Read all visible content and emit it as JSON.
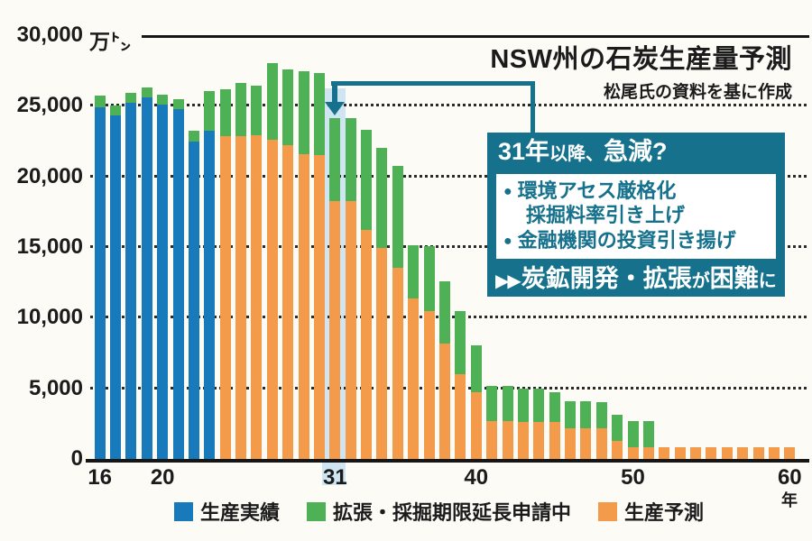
{
  "title": "NSW州の石炭生産量予測",
  "subtitle": "松尾氏の資料を基に作成",
  "callout": {
    "header": {
      "part1": "31年",
      "part2": "以降、",
      "part3": "急減?"
    },
    "bullet_icon": "●",
    "item1_line1": "環境アセス厳格化",
    "item1_line2": "採掘料率引き上げ",
    "item2": "金融機関の投資引き揚げ",
    "footer": {
      "arrows": "▶▶",
      "part1": "炭鉱開発・拡張",
      "part2": "が",
      "part3": "困難",
      "part4": "に"
    },
    "box_color": "#15718c"
  },
  "legend": {
    "items": [
      {
        "label": "生産実績"
      },
      {
        "label": "拡張・採掘期限延長申請中"
      },
      {
        "label": "生産予測"
      }
    ]
  },
  "colors": {
    "actual_blue": "#1879bb",
    "pending_green": "#4fb156",
    "forecast_orange": "#f39a4b",
    "callout_teal": "#15718c",
    "highlight_band": "#cfe6f2",
    "axis_black": "#161616"
  },
  "chart_data": {
    "type": "bar",
    "subtype": "stacked",
    "title": "NSW州の石炭生産量予測",
    "subtitle": "松尾氏の資料を基に作成",
    "y_unit": "万㌧",
    "x_unit": "年",
    "ylim": [
      0,
      30000
    ],
    "grid": "dotted-horizontal",
    "legend_position": "bottom",
    "highlight_year": 31,
    "yticks": [
      {
        "value": 0,
        "label": "0"
      },
      {
        "value": 5000,
        "label": "5,000"
      },
      {
        "value": 10000,
        "label": "10,000"
      },
      {
        "value": 15000,
        "label": "15,000"
      },
      {
        "value": 20000,
        "label": "20,000"
      },
      {
        "value": 25000,
        "label": "25,000"
      },
      {
        "value": 30000,
        "label": "30,000"
      }
    ],
    "x_ticks": [
      16,
      20,
      31,
      40,
      50,
      60
    ],
    "series": [
      {
        "key": "actual",
        "label": "生産実績",
        "color": "#1879bb"
      },
      {
        "key": "pending",
        "label": "拡張・採掘期限延長申請中",
        "color": "#4fb156"
      },
      {
        "key": "forecast",
        "label": "生産予測",
        "color": "#f39a4b"
      }
    ],
    "bars": [
      {
        "year": 16,
        "actual": 24900,
        "pending": 800
      },
      {
        "year": 17,
        "actual": 24350,
        "pending": 650
      },
      {
        "year": 18,
        "actual": 25200,
        "pending": 700
      },
      {
        "year": 19,
        "actual": 25600,
        "pending": 700
      },
      {
        "year": 20,
        "actual": 25100,
        "pending": 700
      },
      {
        "year": 21,
        "actual": 24750,
        "pending": 700
      },
      {
        "year": 22,
        "actual": 22500,
        "pending": 750
      },
      {
        "year": 23,
        "actual": 23250,
        "pending": 2800
      },
      {
        "year": 24,
        "forecast": 22850,
        "pending": 3300
      },
      {
        "year": 25,
        "forecast": 22850,
        "pending": 3800
      },
      {
        "year": 26,
        "forecast": 22900,
        "pending": 3550
      },
      {
        "year": 27,
        "forecast": 22600,
        "pending": 5400
      },
      {
        "year": 28,
        "forecast": 22200,
        "pending": 5350
      },
      {
        "year": 29,
        "forecast": 21550,
        "pending": 5900
      },
      {
        "year": 30,
        "forecast": 21500,
        "pending": 5800
      },
      {
        "year": 31,
        "forecast": 18250,
        "pending": 5900
      },
      {
        "year": 32,
        "forecast": 18250,
        "pending": 5900
      },
      {
        "year": 33,
        "forecast": 16200,
        "pending": 7100
      },
      {
        "year": 34,
        "forecast": 14950,
        "pending": 7050
      },
      {
        "year": 35,
        "forecast": 13550,
        "pending": 7200
      },
      {
        "year": 36,
        "forecast": 11350,
        "pending": 3800
      },
      {
        "year": 37,
        "forecast": 10500,
        "pending": 4550
      },
      {
        "year": 38,
        "forecast": 8150,
        "pending": 4450
      },
      {
        "year": 39,
        "forecast": 6000,
        "pending": 4500
      },
      {
        "year": 40,
        "forecast": 4750,
        "pending": 3300
      },
      {
        "year": 41,
        "forecast": 2700,
        "pending": 2500
      },
      {
        "year": 42,
        "forecast": 2700,
        "pending": 2500
      },
      {
        "year": 43,
        "forecast": 2600,
        "pending": 2400
      },
      {
        "year": 44,
        "forecast": 2600,
        "pending": 2400
      },
      {
        "year": 45,
        "forecast": 2600,
        "pending": 2100
      },
      {
        "year": 46,
        "forecast": 2200,
        "pending": 1900
      },
      {
        "year": 47,
        "forecast": 2200,
        "pending": 1900
      },
      {
        "year": 48,
        "forecast": 2150,
        "pending": 1900
      },
      {
        "year": 49,
        "forecast": 1300,
        "pending": 1800
      },
      {
        "year": 50,
        "forecast": 800,
        "pending": 1900
      },
      {
        "year": 51,
        "forecast": 800,
        "pending": 1900
      },
      {
        "year": 52,
        "forecast": 800
      },
      {
        "year": 53,
        "forecast": 800
      },
      {
        "year": 54,
        "forecast": 800
      },
      {
        "year": 55,
        "forecast": 800
      },
      {
        "year": 56,
        "forecast": 800
      },
      {
        "year": 57,
        "forecast": 800
      },
      {
        "year": 58,
        "forecast": 800
      },
      {
        "year": 59,
        "forecast": 800
      },
      {
        "year": 60,
        "forecast": 800
      }
    ]
  }
}
